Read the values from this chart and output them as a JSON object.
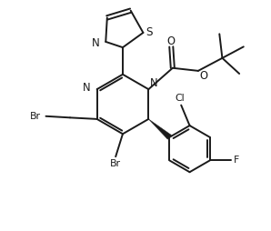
{
  "bg_color": "#ffffff",
  "line_color": "#1a1a1a",
  "line_width": 1.4,
  "font_size": 7.8,
  "figsize": [
    2.98,
    2.54
  ],
  "dpi": 100,
  "xlim": [
    0,
    9.5
  ],
  "ylim": [
    0,
    8.1
  ]
}
